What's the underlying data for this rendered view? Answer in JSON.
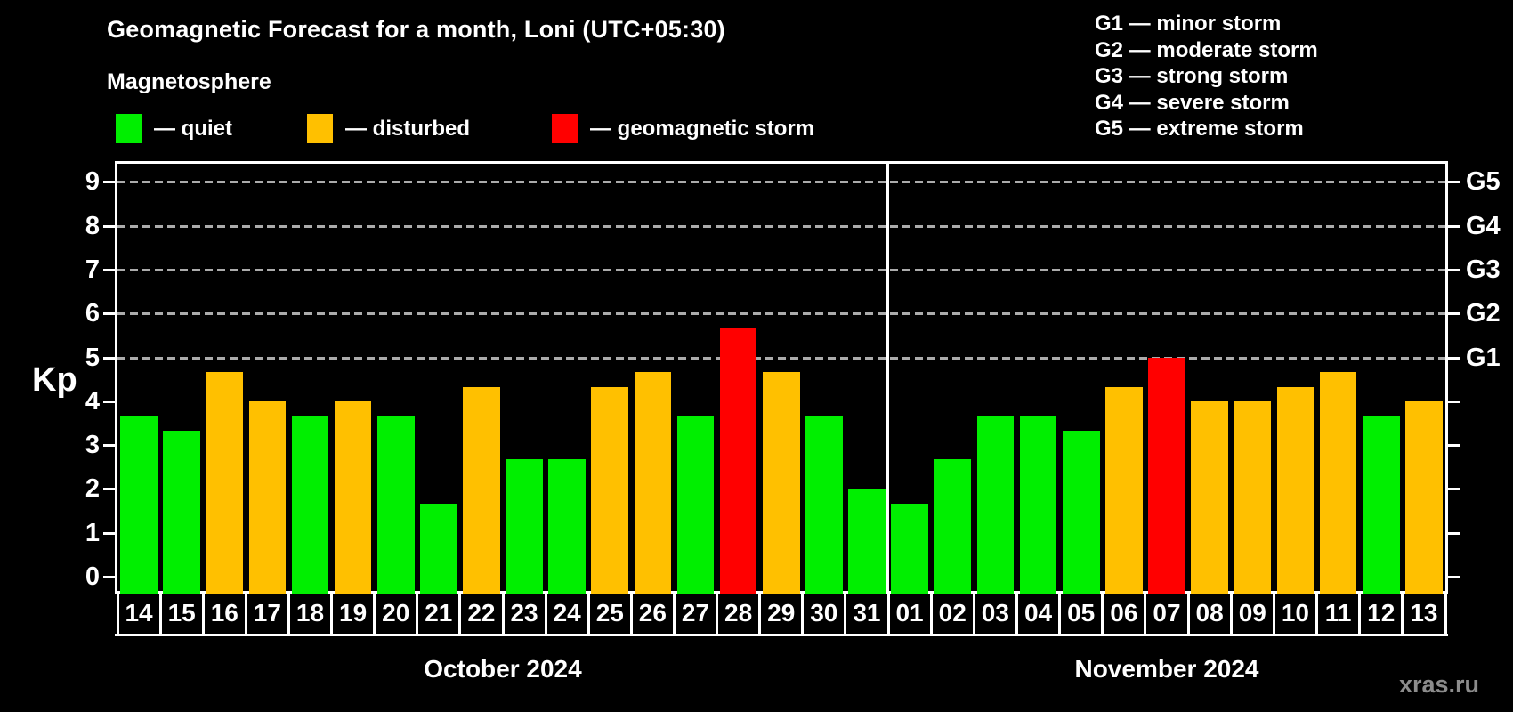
{
  "title": "Geomagnetic Forecast for a month, Loni (UTC+05:30)",
  "subtitle": "Magnetosphere",
  "watermark": "xras.ru",
  "colors": {
    "background": "#000000",
    "quiet": "#00ef00",
    "disturbed": "#ffc000",
    "storm": "#ff0000",
    "grid": "#ababab",
    "axis": "#ffffff",
    "watermark_text": "#8c8c8c"
  },
  "legend": {
    "items": [
      {
        "key": "quiet",
        "label": "— quiet",
        "color": "#00ef00"
      },
      {
        "key": "disturbed",
        "label": "— disturbed",
        "color": "#ffc000"
      },
      {
        "key": "storm",
        "label": "— geomagnetic storm",
        "color": "#ff0000"
      }
    ]
  },
  "g_legend": {
    "items": [
      "G1 — minor storm",
      "G2 — moderate storm",
      "G3 — strong storm",
      "G4 — severe storm",
      "G5 — extreme storm"
    ]
  },
  "chart_data": {
    "type": "bar",
    "title": "Geomagnetic Forecast for a month, Loni (UTC+05:30)",
    "ylabel": "Kp",
    "ylim": [
      0,
      9
    ],
    "yticks": [
      0,
      1,
      2,
      3,
      4,
      5,
      6,
      7,
      8,
      9
    ],
    "gridlines_at_kp": [
      5,
      6,
      7,
      8,
      9
    ],
    "legend_position": "top",
    "right_axis": [
      {
        "kp": 5,
        "label": "G1"
      },
      {
        "kp": 6,
        "label": "G2"
      },
      {
        "kp": 7,
        "label": "G3"
      },
      {
        "kp": 8,
        "label": "G4"
      },
      {
        "kp": 9,
        "label": "G5"
      }
    ],
    "months": [
      {
        "name": "October 2024",
        "days": [
          {
            "date": "14",
            "kp": 3.67,
            "status": "quiet"
          },
          {
            "date": "15",
            "kp": 3.33,
            "status": "quiet"
          },
          {
            "date": "16",
            "kp": 4.67,
            "status": "disturbed"
          },
          {
            "date": "17",
            "kp": 4.0,
            "status": "disturbed"
          },
          {
            "date": "18",
            "kp": 3.67,
            "status": "quiet"
          },
          {
            "date": "19",
            "kp": 4.0,
            "status": "disturbed"
          },
          {
            "date": "20",
            "kp": 3.67,
            "status": "quiet"
          },
          {
            "date": "21",
            "kp": 1.67,
            "status": "quiet"
          },
          {
            "date": "22",
            "kp": 4.33,
            "status": "disturbed"
          },
          {
            "date": "23",
            "kp": 2.67,
            "status": "quiet"
          },
          {
            "date": "24",
            "kp": 2.67,
            "status": "quiet"
          },
          {
            "date": "25",
            "kp": 4.33,
            "status": "disturbed"
          },
          {
            "date": "26",
            "kp": 4.67,
            "status": "disturbed"
          },
          {
            "date": "27",
            "kp": 3.67,
            "status": "quiet"
          },
          {
            "date": "28",
            "kp": 5.67,
            "status": "storm"
          },
          {
            "date": "29",
            "kp": 4.67,
            "status": "disturbed"
          },
          {
            "date": "30",
            "kp": 3.67,
            "status": "quiet"
          },
          {
            "date": "31",
            "kp": 2.0,
            "status": "quiet"
          }
        ]
      },
      {
        "name": "November 2024",
        "days": [
          {
            "date": "01",
            "kp": 1.67,
            "status": "quiet"
          },
          {
            "date": "02",
            "kp": 2.67,
            "status": "quiet"
          },
          {
            "date": "03",
            "kp": 3.67,
            "status": "quiet"
          },
          {
            "date": "04",
            "kp": 3.67,
            "status": "quiet"
          },
          {
            "date": "05",
            "kp": 3.33,
            "status": "quiet"
          },
          {
            "date": "06",
            "kp": 4.33,
            "status": "disturbed"
          },
          {
            "date": "07",
            "kp": 5.0,
            "status": "storm"
          },
          {
            "date": "08",
            "kp": 4.0,
            "status": "disturbed"
          },
          {
            "date": "09",
            "kp": 4.0,
            "status": "disturbed"
          },
          {
            "date": "10",
            "kp": 4.33,
            "status": "disturbed"
          },
          {
            "date": "11",
            "kp": 4.67,
            "status": "disturbed"
          },
          {
            "date": "12",
            "kp": 3.67,
            "status": "quiet"
          },
          {
            "date": "13",
            "kp": 4.0,
            "status": "disturbed"
          }
        ]
      }
    ]
  }
}
